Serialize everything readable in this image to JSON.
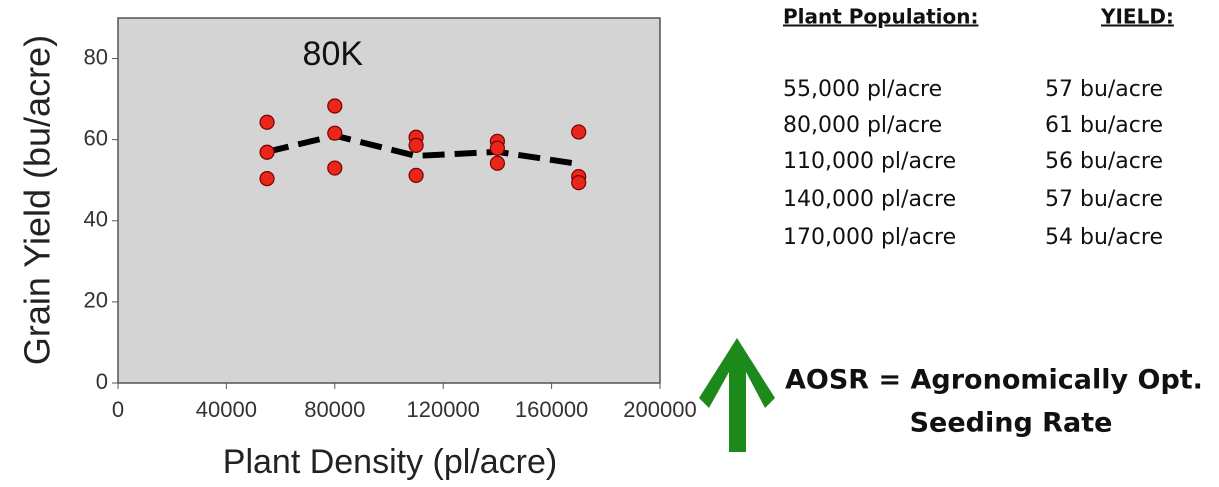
{
  "chart_data": {
    "type": "scatter",
    "ylabel": "Grain Yield (bu/acre)",
    "xlabel": "Plant Density (pl/acre)",
    "annotation": "80K",
    "xlim": [
      0,
      200000
    ],
    "xticks": [
      0,
      40000,
      80000,
      120000,
      160000,
      200000
    ],
    "ylim": [
      0,
      90
    ],
    "yticks": [
      0,
      20,
      40,
      60,
      80
    ],
    "background": "#d4d4d4",
    "points": {
      "color": "#e8261a",
      "x": [
        55000,
        55000,
        55000,
        80000,
        80000,
        80000,
        110000,
        110000,
        110000,
        140000,
        140000,
        140000,
        170000,
        170000,
        170000
      ],
      "y": [
        64.3,
        56.9,
        50.4,
        68.3,
        61.6,
        53,
        60.6,
        58.6,
        51.2,
        59.6,
        57.9,
        54.2,
        61.9,
        50.9,
        49.4
      ]
    },
    "trend": {
      "color": "#000000",
      "x": [
        55000,
        80000,
        110000,
        140000,
        170000
      ],
      "values": [
        57,
        61,
        56,
        57,
        54
      ]
    }
  },
  "table": {
    "headers": [
      "Plant Population:",
      "YIELD:"
    ],
    "rows": [
      [
        "55,000 pl/acre",
        "57 bu/acre"
      ],
      [
        "80,000 pl/acre",
        "61 bu/acre"
      ],
      [
        "110,000 pl/acre",
        "56 bu/acre"
      ],
      [
        "140,000 pl/acre",
        "57 bu/acre"
      ],
      [
        "170,000 pl/acre",
        "54 bu/acre"
      ]
    ]
  },
  "note": {
    "lines": [
      "AOSR = Agronomically Opt.",
      "Seeding Rate"
    ]
  }
}
